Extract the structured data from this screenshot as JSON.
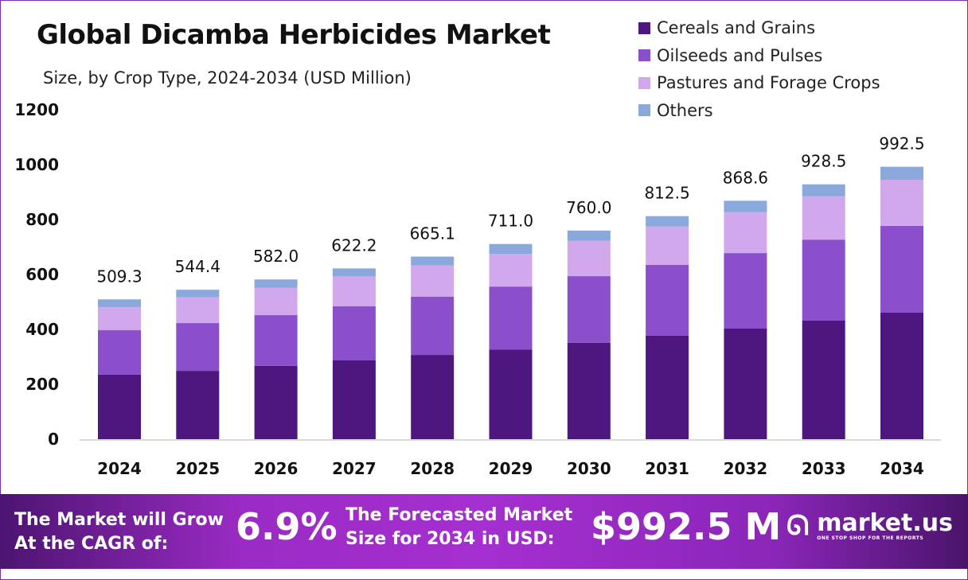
{
  "chart_data": {
    "type": "bar",
    "stacked": true,
    "title": "Global Dicamba Herbicides Market",
    "subtitle": "Size, by  Crop Type, 2024-2034 (USD Million)",
    "categories": [
      "2024",
      "2025",
      "2026",
      "2027",
      "2028",
      "2029",
      "2030",
      "2031",
      "2032",
      "2033",
      "2034"
    ],
    "series": [
      {
        "name": "Cereals and Grains",
        "color": "#4e1780",
        "values": [
          235,
          249,
          267,
          287,
          307,
          327,
          351,
          377,
          403,
          432,
          461
        ]
      },
      {
        "name": "Oilseeds and Pulses",
        "color": "#8b4fcb",
        "values": [
          162,
          174,
          185,
          197,
          212,
          229,
          243,
          258,
          275,
          295,
          316
        ]
      },
      {
        "name": "Pastures and Forage Crops",
        "color": "#d2a8ec",
        "values": [
          84,
          94,
          99,
          109,
          114,
          119,
          129,
          140,
          149,
          158,
          168
        ]
      },
      {
        "name": "Others",
        "color": "#8aa8dc",
        "values": [
          28.3,
          27.4,
          31,
          29.2,
          32.1,
          36,
          37,
          37.5,
          41.6,
          43.5,
          47.5
        ]
      }
    ],
    "totals": [
      "509.3",
      "544.4",
      "582.0",
      "622.2",
      "665.1",
      "711.0",
      "760.0",
      "812.5",
      "868.6",
      "928.5",
      "992.5"
    ],
    "yticks": [
      "0",
      "200",
      "400",
      "600",
      "800",
      "1000",
      "1200"
    ],
    "ylim": [
      0,
      1200
    ],
    "grid": false,
    "legend": "top-right"
  },
  "banner": {
    "cagr_label": "The Market will Grow At the CAGR of:",
    "cagr_value": "6.9%",
    "forecast_label": "The Forecasted Market Size for 2034 in USD:",
    "forecast_value": "$992.5 M",
    "logo_name": "market.us",
    "logo_tagline": "ONE STOP SHOP FOR THE REPORTS"
  }
}
